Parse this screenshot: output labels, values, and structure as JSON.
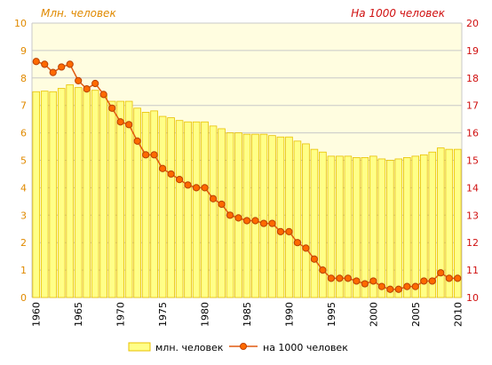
{
  "chart_data": {
    "type": "bar+line",
    "x": [
      1960,
      1961,
      1962,
      1963,
      1964,
      1965,
      1966,
      1967,
      1968,
      1969,
      1970,
      1971,
      1972,
      1973,
      1974,
      1975,
      1976,
      1977,
      1978,
      1979,
      1980,
      1981,
      1982,
      1983,
      1984,
      1985,
      1986,
      1987,
      1988,
      1989,
      1990,
      1991,
      1992,
      1993,
      1994,
      1995,
      1996,
      1997,
      1998,
      1999,
      2000,
      2001,
      2002,
      2003,
      2004,
      2005,
      2006,
      2007,
      2008,
      2009,
      2010
    ],
    "x_tick_labels": [
      "1960",
      "1965",
      "1970",
      "1975",
      "1980",
      "1985",
      "1990",
      "1995",
      "2000",
      "2005",
      "2010"
    ],
    "series": [
      {
        "name": "млн. человек",
        "type": "bar",
        "axis": "left",
        "color": "#ffff88",
        "stroke": "#e8c000",
        "values": [
          7.5,
          7.52,
          7.5,
          7.62,
          7.75,
          7.65,
          7.55,
          7.55,
          7.35,
          7.15,
          7.15,
          7.15,
          6.9,
          6.75,
          6.8,
          6.6,
          6.55,
          6.45,
          6.4,
          6.4,
          6.4,
          6.25,
          6.15,
          6.0,
          6.0,
          5.95,
          5.95,
          5.95,
          5.9,
          5.85,
          5.85,
          5.7,
          5.6,
          5.4,
          5.3,
          5.15,
          5.15,
          5.15,
          5.1,
          5.1,
          5.15,
          5.05,
          5.0,
          5.05,
          5.1,
          5.15,
          5.2,
          5.3,
          5.45,
          5.4,
          5.4
        ]
      },
      {
        "name": "на 1000 человек",
        "type": "line",
        "axis": "right",
        "color": "#e05a10",
        "marker_color": "#ff6a00",
        "values": [
          18.6,
          18.5,
          18.2,
          18.4,
          18.5,
          17.9,
          17.6,
          17.8,
          17.4,
          16.9,
          16.4,
          16.3,
          15.7,
          15.2,
          15.2,
          14.7,
          14.5,
          14.3,
          14.1,
          14.0,
          14.0,
          13.6,
          13.4,
          13.0,
          12.9,
          12.8,
          12.8,
          12.7,
          12.7,
          12.4,
          12.4,
          12.0,
          11.8,
          11.4,
          11.0,
          10.7,
          10.7,
          10.7,
          10.6,
          10.5,
          10.6,
          10.4,
          10.3,
          10.3,
          10.4,
          10.4,
          10.6,
          10.6,
          10.9,
          10.7,
          10.7
        ]
      }
    ],
    "left_axis": {
      "title": "Млн. человек",
      "min": 0,
      "max": 10,
      "ticks": [
        "0",
        "1",
        "2",
        "3",
        "4",
        "5",
        "6",
        "7",
        "8",
        "9",
        "10"
      ],
      "color": "#e08a00"
    },
    "right_axis": {
      "title": "На 1000 человек",
      "min": 10,
      "max": 20,
      "ticks": [
        "10",
        "11",
        "12",
        "13",
        "14",
        "15",
        "16",
        "17",
        "18",
        "19",
        "20"
      ],
      "color": "#d01010"
    },
    "grid": true,
    "plot_background": "#fffde0",
    "grid_color": "#c8c8c8",
    "legend_placement": "bottom"
  }
}
